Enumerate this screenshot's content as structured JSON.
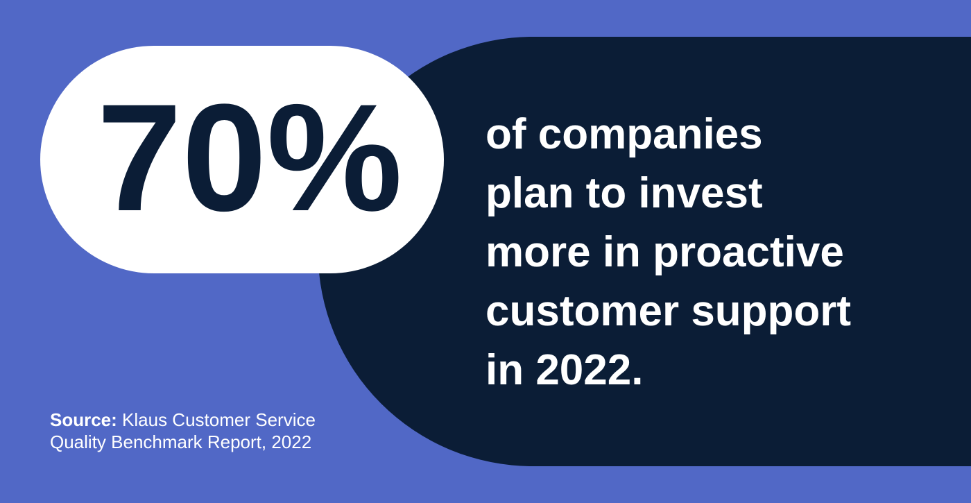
{
  "stat": "70%",
  "statement": [
    "of companies",
    "plan to invest",
    "more in proactive",
    "customer support",
    "in 2022."
  ],
  "source": {
    "label": "Source:",
    "lines": [
      "Klaus Customer Service",
      "Quality Benchmark Report, 2022"
    ]
  }
}
